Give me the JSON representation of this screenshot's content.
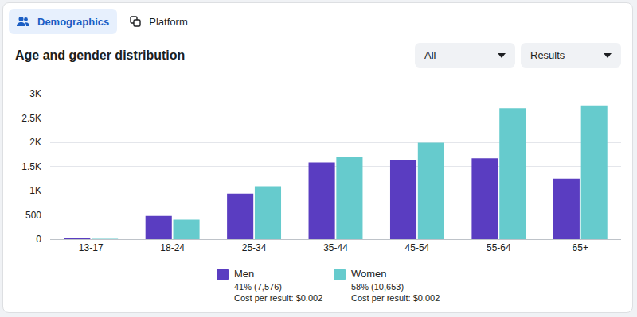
{
  "tabs": [
    {
      "label": "Demographics",
      "active": true
    },
    {
      "label": "Platform",
      "active": false
    }
  ],
  "filters": [
    "All",
    "Results"
  ],
  "chart_data": {
    "type": "bar",
    "title": "Age and gender distribution",
    "categories": [
      "13-17",
      "18-24",
      "25-34",
      "35-44",
      "45-54",
      "55-64",
      "65+"
    ],
    "series": [
      {
        "name": "Men",
        "color": "#5a3dc1",
        "values": [
          15,
          480,
          940,
          1580,
          1640,
          1670,
          1250
        ],
        "share": "41% (7,576)",
        "cost": "Cost per result: $0.002"
      },
      {
        "name": "Women",
        "color": "#66cbcd",
        "values": [
          10,
          400,
          1090,
          1690,
          1990,
          2700,
          2760
        ],
        "share": "58% (10,653)",
        "cost": "Cost per result: $0.002"
      }
    ],
    "ylim": [
      0,
      3000
    ],
    "yticks": [
      0,
      500,
      {
        "value": 1000,
        "label": "1K"
      },
      {
        "value": 1500,
        "label": "1.5K"
      },
      {
        "value": 2000,
        "label": "2K"
      },
      {
        "value": 2500,
        "label": "2.5K"
      },
      {
        "value": 3000,
        "label": "3K"
      }
    ],
    "grid": true,
    "legend": "bottom"
  }
}
